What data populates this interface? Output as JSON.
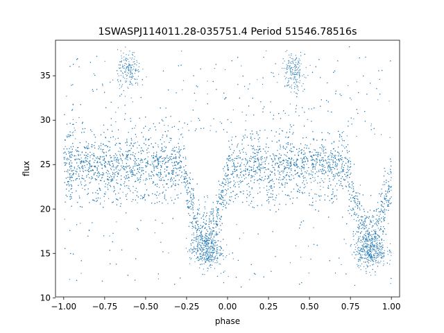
{
  "chart_data": {
    "type": "scatter",
    "title": "1SWASPJ114011.28-035751.4 Period 51546.78516s",
    "xlabel": "phase",
    "ylabel": "flux",
    "xlim": [
      -1.05,
      1.05
    ],
    "ylim": [
      10.1,
      39.0
    ],
    "xticks": [
      -1.0,
      -0.75,
      -0.5,
      -0.25,
      0.0,
      0.25,
      0.5,
      0.75,
      1.0
    ],
    "xtick_labels": [
      "−1.00",
      "−0.75",
      "−0.50",
      "−0.25",
      "0.00",
      "0.25",
      "0.50",
      "0.75",
      "1.00"
    ],
    "yticks": [
      10,
      15,
      20,
      25,
      30,
      35
    ],
    "ytick_labels": [
      "10",
      "15",
      "20",
      "25",
      "30",
      "35"
    ],
    "grid": false,
    "marker_color": "#1f77b4",
    "light_curve": {
      "phase_range": [
        -1.0,
        1.0
      ],
      "baseline_flux": 25.0,
      "scatter_sd": 1.6,
      "secondary_band_flux": 21.3,
      "primary_eclipse_phases": [
        -0.13,
        0.87
      ],
      "primary_eclipse_min_flux": 17.0,
      "primary_eclipse_deep_tail_flux": 15.3,
      "outlier_clumps": [
        {
          "phase": -0.6,
          "flux": 35.5
        },
        {
          "phase": 0.4,
          "flux": 35.5
        }
      ],
      "upper_outlier_cap": 38.3,
      "lower_outlier_floor": 11.2
    }
  }
}
